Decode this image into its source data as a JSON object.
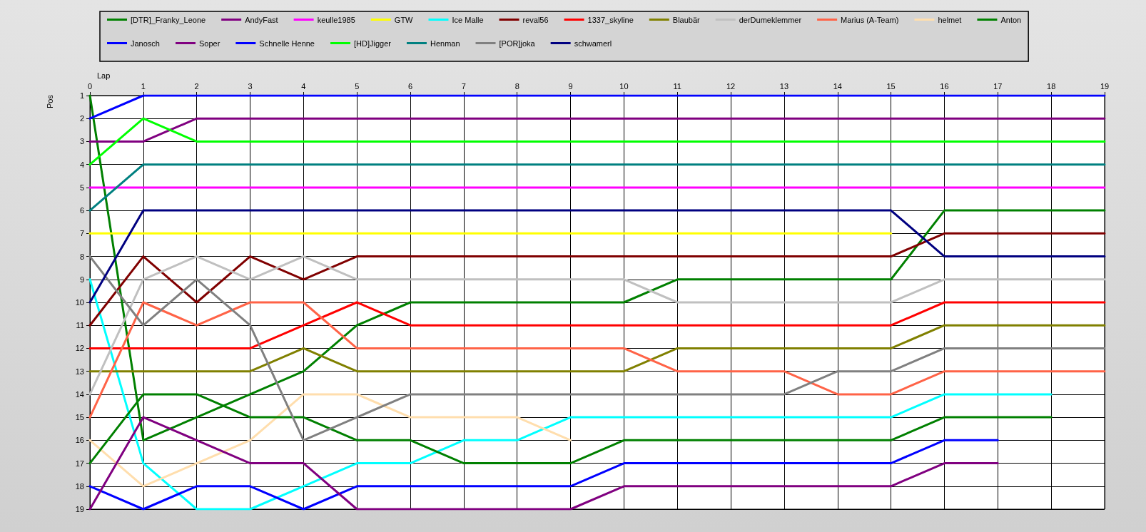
{
  "chart_data": {
    "type": "line",
    "xlabel": "Lap",
    "ylabel": "Pos",
    "x": [
      0,
      1,
      2,
      3,
      4,
      5,
      6,
      7,
      8,
      9,
      10,
      11,
      12,
      13,
      14,
      15,
      16,
      17,
      18,
      19
    ],
    "xlim": [
      0,
      19
    ],
    "xticks": [
      0,
      1,
      2,
      3,
      4,
      5,
      6,
      7,
      8,
      9,
      10,
      11,
      12,
      13,
      14,
      15,
      16,
      17,
      18,
      19
    ],
    "ylim": [
      19,
      1
    ],
    "yticks": [
      1,
      2,
      3,
      4,
      5,
      6,
      7,
      8,
      9,
      10,
      11,
      12,
      13,
      14,
      15,
      16,
      17,
      18,
      19
    ],
    "grid": true,
    "legend": "top",
    "marker": "none",
    "line_style": "solid",
    "series": [
      {
        "name": "[DTR]_Franky_Leone",
        "color": "#008000",
        "values": [
          1,
          16,
          15,
          14,
          13,
          11,
          10,
          10,
          10,
          10,
          10,
          9,
          9,
          9,
          9,
          9,
          6,
          6,
          6,
          6
        ]
      },
      {
        "name": "AndyFast",
        "color": "#800080",
        "values": [
          3,
          3,
          2,
          2,
          2,
          2,
          2,
          2,
          2,
          2,
          2,
          2,
          2,
          2,
          2,
          2,
          2,
          2,
          2,
          2
        ]
      },
      {
        "name": "keulle1985",
        "color": "#ff00ff",
        "values": [
          5,
          5,
          5,
          5,
          5,
          5,
          5,
          5,
          5,
          5,
          5,
          5,
          5,
          5,
          5,
          5,
          5,
          5,
          5,
          5
        ]
      },
      {
        "name": "GTW",
        "color": "#ffff00",
        "values": [
          7,
          7,
          7,
          7,
          7,
          7,
          7,
          7,
          7,
          7,
          7,
          7,
          7,
          7,
          7,
          7,
          null,
          null,
          null,
          null
        ]
      },
      {
        "name": "Ice Malle",
        "color": "#00ffff",
        "values": [
          9,
          17,
          19,
          19,
          18,
          17,
          17,
          16,
          16,
          15,
          15,
          15,
          15,
          15,
          15,
          15,
          14,
          14,
          14,
          null
        ]
      },
      {
        "name": "reval56",
        "color": "#800000",
        "values": [
          11,
          8,
          10,
          8,
          9,
          8,
          8,
          8,
          8,
          8,
          8,
          8,
          8,
          8,
          8,
          8,
          7,
          7,
          7,
          7
        ]
      },
      {
        "name": "1337_skyline",
        "color": "#ff0000",
        "values": [
          12,
          12,
          12,
          12,
          11,
          10,
          11,
          11,
          11,
          11,
          11,
          11,
          11,
          11,
          11,
          11,
          10,
          10,
          10,
          10
        ]
      },
      {
        "name": "Blaubär",
        "color": "#808000",
        "values": [
          13,
          13,
          13,
          13,
          12,
          13,
          13,
          13,
          13,
          13,
          13,
          12,
          12,
          12,
          12,
          12,
          11,
          11,
          11,
          11
        ]
      },
      {
        "name": "derDumeklemmer",
        "color": "#c0c0c0",
        "values": [
          14,
          9,
          8,
          9,
          8,
          9,
          9,
          9,
          9,
          9,
          9,
          10,
          10,
          10,
          10,
          10,
          9,
          9,
          9,
          9
        ]
      },
      {
        "name": "Marius (A-Team)",
        "color": "#ff6347",
        "values": [
          15,
          10,
          11,
          10,
          10,
          12,
          12,
          12,
          12,
          12,
          12,
          13,
          13,
          13,
          14,
          14,
          13,
          13,
          13,
          13
        ]
      },
      {
        "name": "helmet",
        "color": "#ffdead",
        "values": [
          16,
          18,
          17,
          16,
          14,
          14,
          15,
          15,
          15,
          16,
          null,
          null,
          null,
          null,
          null,
          null,
          null,
          null,
          null,
          null
        ]
      },
      {
        "name": "Anton",
        "color": "#008000",
        "values": [
          17,
          14,
          14,
          15,
          15,
          16,
          16,
          17,
          17,
          17,
          16,
          16,
          16,
          16,
          16,
          16,
          15,
          15,
          15,
          null
        ]
      },
      {
        "name": "Janosch",
        "color": "#0000ff",
        "values": [
          18,
          19,
          18,
          18,
          19,
          18,
          18,
          18,
          18,
          18,
          17,
          17,
          17,
          17,
          17,
          17,
          16,
          16,
          null,
          null
        ]
      },
      {
        "name": "Soper",
        "color": "#800080",
        "values": [
          19,
          15,
          16,
          17,
          17,
          19,
          19,
          19,
          19,
          19,
          18,
          18,
          18,
          18,
          18,
          18,
          17,
          17,
          null,
          null
        ]
      },
      {
        "name": "Schnelle Henne",
        "color": "#0000ff",
        "values": [
          2,
          1,
          1,
          1,
          1,
          1,
          1,
          1,
          1,
          1,
          1,
          1,
          1,
          1,
          1,
          1,
          1,
          1,
          1,
          1
        ]
      },
      {
        "name": "[HD]Jigger",
        "color": "#00ff00",
        "values": [
          4,
          2,
          3,
          3,
          3,
          3,
          3,
          3,
          3,
          3,
          3,
          3,
          3,
          3,
          3,
          3,
          3,
          3,
          3,
          3
        ]
      },
      {
        "name": "Henman",
        "color": "#008080",
        "values": [
          6,
          4,
          4,
          4,
          4,
          4,
          4,
          4,
          4,
          4,
          4,
          4,
          4,
          4,
          4,
          4,
          4,
          4,
          4,
          4
        ]
      },
      {
        "name": "[POR]joka",
        "color": "#808080",
        "values": [
          8,
          11,
          9,
          11,
          16,
          15,
          14,
          14,
          14,
          14,
          14,
          14,
          14,
          14,
          13,
          13,
          12,
          12,
          12,
          12
        ]
      },
      {
        "name": "schwamerl",
        "color": "#000080",
        "values": [
          10,
          6,
          6,
          6,
          6,
          6,
          6,
          6,
          6,
          6,
          6,
          6,
          6,
          6,
          6,
          6,
          8,
          8,
          8,
          8
        ]
      }
    ]
  }
}
